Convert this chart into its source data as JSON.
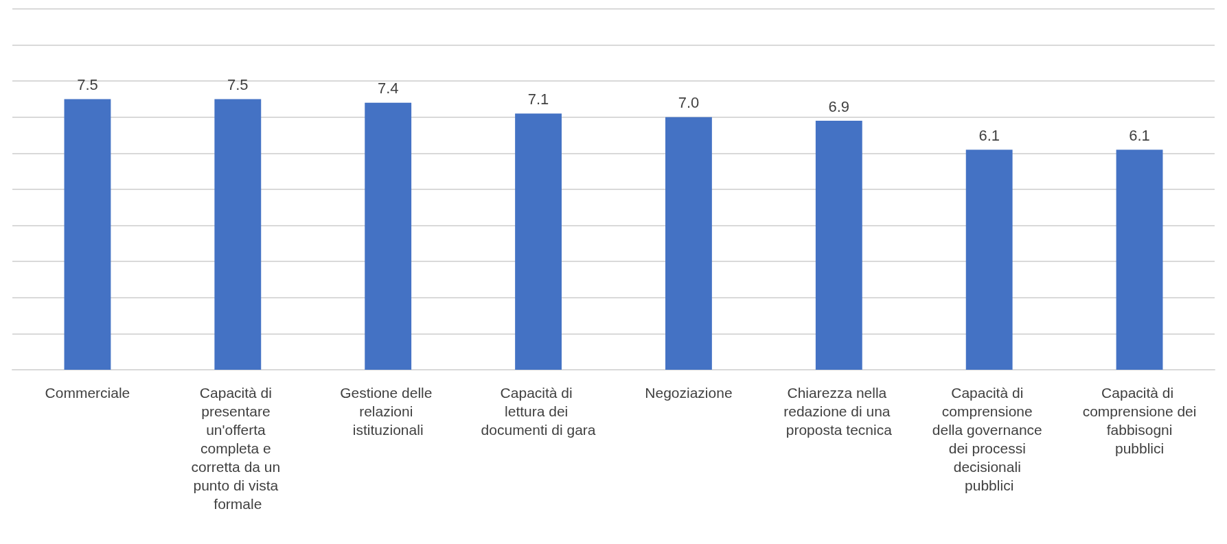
{
  "chart_data": {
    "type": "bar",
    "categories": [
      "Commerciale",
      "Capacità di presentare un'offerta completa e corretta da un punto di vista formale",
      "Gestione delle relazioni istituzionali",
      "Capacità di lettura dei documenti di gara",
      "Negoziazione",
      "Chiarezza nella redazione di una proposta tecnica",
      "Capacità di comprensione della governance dei processi decisionali pubblici",
      "Capacità di comprensione dei fabbisogni pubblici"
    ],
    "values": [
      7.5,
      7.5,
      7.4,
      7.1,
      7.0,
      6.9,
      6.1,
      6.1
    ],
    "value_labels": [
      "7.5",
      "7.5",
      "7.4",
      "7.1",
      "7.0",
      "6.9",
      "6.1",
      "6.1"
    ],
    "color": "#4472c4",
    "ylim": [
      0,
      10
    ],
    "yticks": [
      {
        "value": 0,
        "label": null
      },
      {
        "value": 1,
        "label": null
      },
      {
        "value": 2,
        "label": null
      },
      {
        "value": 3,
        "label": null
      },
      {
        "value": 4,
        "label": null
      },
      {
        "value": 5,
        "label": null
      },
      {
        "value": 6,
        "label": null
      },
      {
        "value": 7,
        "label": null
      },
      {
        "value": 8,
        "label": null
      },
      {
        "value": 9,
        "label": null
      },
      {
        "value": 10,
        "label": null
      }
    ],
    "grid": "y",
    "tick_labels": "x"
  }
}
